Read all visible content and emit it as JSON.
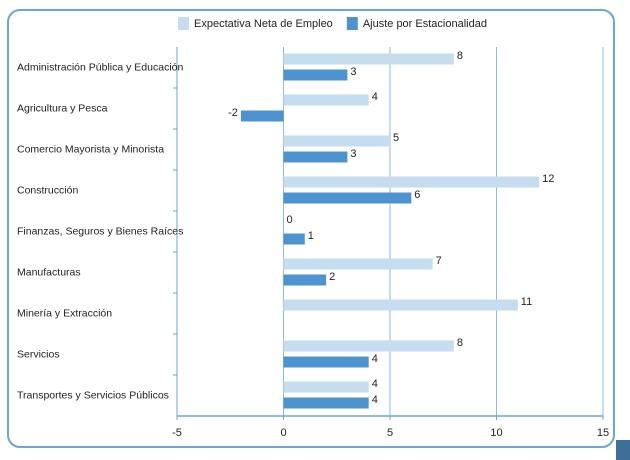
{
  "chart_data": {
    "type": "bar",
    "orientation": "horizontal",
    "categories": [
      "Administración Pública y Educación",
      "Agricultura y Pesca",
      "Comercio Mayorista y Minorista",
      "Construcción",
      "Finanzas, Seguros y Bienes Raíces",
      "Manufacturas",
      "Minería y Extracción",
      "Servicios",
      "Transportes y Servicios Públicos"
    ],
    "series": [
      {
        "name": "Expectativa Neta de Empleo",
        "color": "#c6dcef",
        "values": [
          8,
          4,
          5,
          12,
          0,
          7,
          11,
          8,
          4
        ]
      },
      {
        "name": "Ajuste por Estacionalidad",
        "color": "#4d93cf",
        "values": [
          3,
          -2,
          3,
          6,
          1,
          2,
          null,
          4,
          4
        ]
      }
    ],
    "xlim": [
      -5,
      15
    ],
    "xticks": [
      -5,
      0,
      5,
      10,
      15
    ],
    "grid": true,
    "legend": "top"
  }
}
